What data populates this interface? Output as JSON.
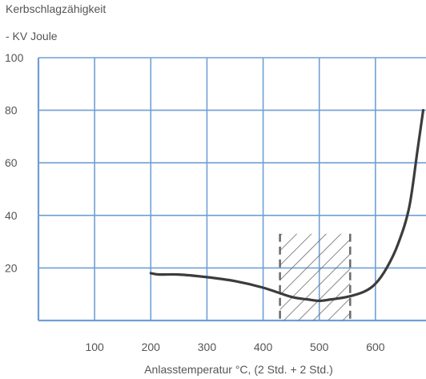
{
  "chart_data": {
    "type": "line",
    "ylabel_line1": "Kerbschlagzähigkeit",
    "ylabel_line2": "- KV Joule",
    "xlabel": "Anlasstemperatur °C, (2 Std. + 2 Std.)",
    "xlim": [
      0,
      690
    ],
    "ylim": [
      0,
      100
    ],
    "xticks": [
      100,
      200,
      300,
      400,
      500,
      600
    ],
    "yticks": [
      20,
      40,
      60,
      80,
      100
    ],
    "grid": true,
    "series": [
      {
        "x": [
          200,
          215,
          250,
          300,
          350,
          400,
          450,
          480,
          500,
          520,
          550,
          580,
          600,
          620,
          640,
          660,
          675,
          685
        ],
        "values": [
          18,
          17.5,
          17.5,
          16.5,
          15,
          12.5,
          9,
          8,
          7.5,
          8,
          9,
          11,
          14,
          20,
          29,
          43,
          65,
          80
        ]
      }
    ],
    "hatched_region": {
      "x": [
        430,
        555
      ],
      "y": [
        0,
        33
      ]
    },
    "colors": {
      "grid": "#6f9fd4",
      "curve": "#3c3c3c",
      "hatch": "#6a6a6a",
      "text": "#555555"
    }
  }
}
